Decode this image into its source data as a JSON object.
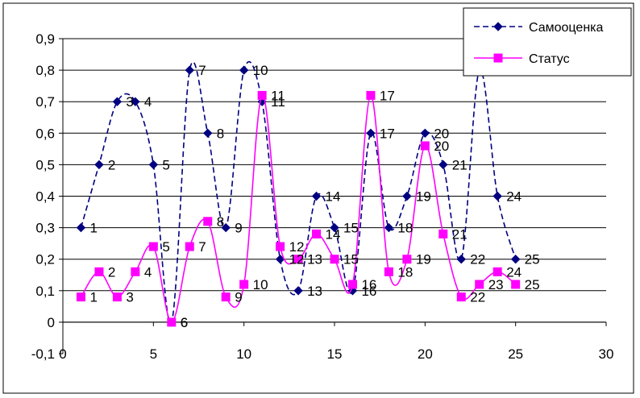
{
  "chart_data": {
    "type": "line",
    "xlim": [
      0,
      30
    ],
    "ylim": [
      -0.1,
      0.9
    ],
    "x_ticks": [
      "0",
      "5",
      "10",
      "15",
      "20",
      "25",
      "30"
    ],
    "y_ticks": [
      "-0,1",
      "0",
      "0,1",
      "0,2",
      "0,3",
      "0,4",
      "0,5",
      "0,6",
      "0,7",
      "0,8",
      "0,9"
    ],
    "grid": "horizontal",
    "legend": "top-right",
    "series": [
      {
        "name": "Самооценка",
        "color": "#000080",
        "line": "dashed",
        "marker": "diamond",
        "x": [
          1,
          2,
          3,
          4,
          5,
          6,
          7,
          8,
          9,
          10,
          11,
          12,
          13,
          14,
          15,
          16,
          17,
          18,
          19,
          20,
          21,
          22,
          23,
          24,
          25
        ],
        "y": [
          0.3,
          0.5,
          0.7,
          0.7,
          0.5,
          0,
          0.8,
          0.6,
          0.3,
          0.8,
          0.7,
          0.2,
          0.1,
          0.4,
          0.3,
          0.1,
          0.6,
          0.3,
          0.4,
          0.6,
          0.5,
          0.2,
          0.8,
          0.4,
          0.2
        ],
        "labels": [
          "1",
          "2",
          "3",
          "4",
          "5",
          "6",
          "7",
          "8",
          "9",
          "10",
          "11",
          "12",
          "13",
          "14",
          "15",
          "16",
          "17",
          "18",
          "19",
          "20",
          "21",
          "22",
          "23",
          "24",
          "25"
        ]
      },
      {
        "name": "Статус",
        "color": "#ff00ff",
        "line": "solid",
        "marker": "square",
        "x": [
          1,
          2,
          3,
          4,
          5,
          6,
          7,
          8,
          9,
          10,
          11,
          12,
          13,
          14,
          15,
          16,
          17,
          18,
          19,
          20,
          21,
          22,
          23,
          24,
          25
        ],
        "y": [
          0.08,
          0.16,
          0.08,
          0.16,
          0.24,
          0,
          0.24,
          0.32,
          0.08,
          0.12,
          0.72,
          0.24,
          0.2,
          0.28,
          0.2,
          0.12,
          0.72,
          0.16,
          0.2,
          0.56,
          0.28,
          0.08,
          0.12,
          0.16,
          0.12
        ],
        "labels": [
          "1",
          "2",
          "3",
          "4",
          "5",
          "6",
          "7",
          "8",
          "9",
          "10",
          "11",
          "12",
          "13",
          "14",
          "15",
          "16",
          "17",
          "18",
          "19",
          "20",
          "21",
          "22",
          "23",
          "24",
          "25"
        ]
      }
    ]
  }
}
